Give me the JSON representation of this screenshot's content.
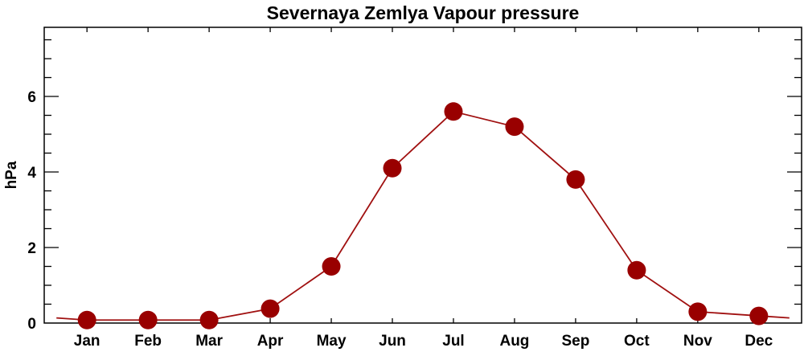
{
  "chart_data": {
    "type": "line",
    "title": "Severnaya Zemlya Vapour pressure",
    "xlabel": "",
    "ylabel": "hPa",
    "categories": [
      "Jan",
      "Feb",
      "Mar",
      "Apr",
      "May",
      "Jun",
      "Jul",
      "Aug",
      "Sep",
      "Oct",
      "Nov",
      "Dec"
    ],
    "values": [
      0.08,
      0.08,
      0.08,
      0.38,
      1.5,
      4.1,
      5.6,
      5.2,
      3.8,
      1.4,
      0.3,
      0.19
    ],
    "ylim": [
      0,
      7.83
    ],
    "yticks": [
      0,
      2,
      4,
      6
    ],
    "yminor_step": 0.5,
    "grid": false,
    "markers": "filled-circle",
    "colors": {
      "line": "#a01010",
      "marker": "#990000",
      "axis": "#000000"
    }
  }
}
